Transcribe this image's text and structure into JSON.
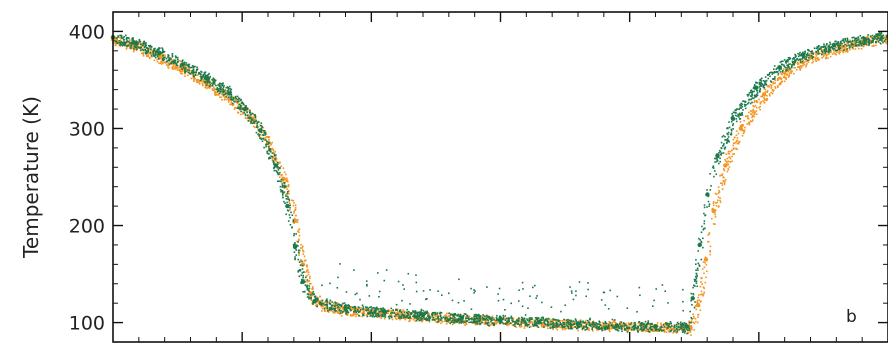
{
  "chart_data": {
    "type": "scatter",
    "panel_label": "b",
    "ylabel": "Temperature (K)",
    "ylim": [
      80,
      420
    ],
    "xlim": [
      0,
      1
    ],
    "y_ticks": [
      100,
      200,
      300,
      400
    ],
    "colors": {
      "orange": "#F5941F",
      "green": "#1B7A4C"
    },
    "series": [
      {
        "color": "#F5941F",
        "points": [
          [
            0.0,
            392
          ],
          [
            0.03,
            385
          ],
          [
            0.06,
            374
          ],
          [
            0.09,
            362
          ],
          [
            0.12,
            348
          ],
          [
            0.15,
            331
          ],
          [
            0.18,
            310
          ],
          [
            0.2,
            285
          ],
          [
            0.22,
            248
          ],
          [
            0.235,
            205
          ],
          [
            0.245,
            160
          ],
          [
            0.255,
            130
          ],
          [
            0.27,
            118
          ],
          [
            0.3,
            113
          ],
          [
            0.35,
            110
          ],
          [
            0.4,
            107
          ],
          [
            0.45,
            104
          ],
          [
            0.5,
            102
          ],
          [
            0.55,
            100
          ],
          [
            0.6,
            98
          ],
          [
            0.65,
            97
          ],
          [
            0.7,
            95
          ],
          [
            0.745,
            95
          ],
          [
            0.755,
            118
          ],
          [
            0.765,
            165
          ],
          [
            0.775,
            215
          ],
          [
            0.79,
            262
          ],
          [
            0.81,
            300
          ],
          [
            0.84,
            335
          ],
          [
            0.87,
            360
          ],
          [
            0.9,
            374
          ],
          [
            0.94,
            384
          ],
          [
            0.97,
            390
          ],
          [
            1.0,
            393
          ]
        ]
      },
      {
        "color": "#1B7A4C",
        "points": [
          [
            0.0,
            394
          ],
          [
            0.03,
            388
          ],
          [
            0.06,
            378
          ],
          [
            0.09,
            366
          ],
          [
            0.12,
            352
          ],
          [
            0.15,
            336
          ],
          [
            0.17,
            320
          ],
          [
            0.19,
            298
          ],
          [
            0.21,
            262
          ],
          [
            0.225,
            220
          ],
          [
            0.235,
            178
          ],
          [
            0.245,
            142
          ],
          [
            0.26,
            122
          ],
          [
            0.3,
            115
          ],
          [
            0.35,
            111
          ],
          [
            0.4,
            108
          ],
          [
            0.45,
            105
          ],
          [
            0.5,
            103
          ],
          [
            0.55,
            101
          ],
          [
            0.6,
            99
          ],
          [
            0.65,
            97
          ],
          [
            0.7,
            96
          ],
          [
            0.74,
            96
          ],
          [
            0.748,
            125
          ],
          [
            0.757,
            180
          ],
          [
            0.767,
            232
          ],
          [
            0.78,
            272
          ],
          [
            0.8,
            310
          ],
          [
            0.83,
            342
          ],
          [
            0.86,
            363
          ],
          [
            0.89,
            376
          ],
          [
            0.93,
            386
          ],
          [
            0.97,
            392
          ],
          [
            1.0,
            395
          ]
        ]
      }
    ]
  }
}
